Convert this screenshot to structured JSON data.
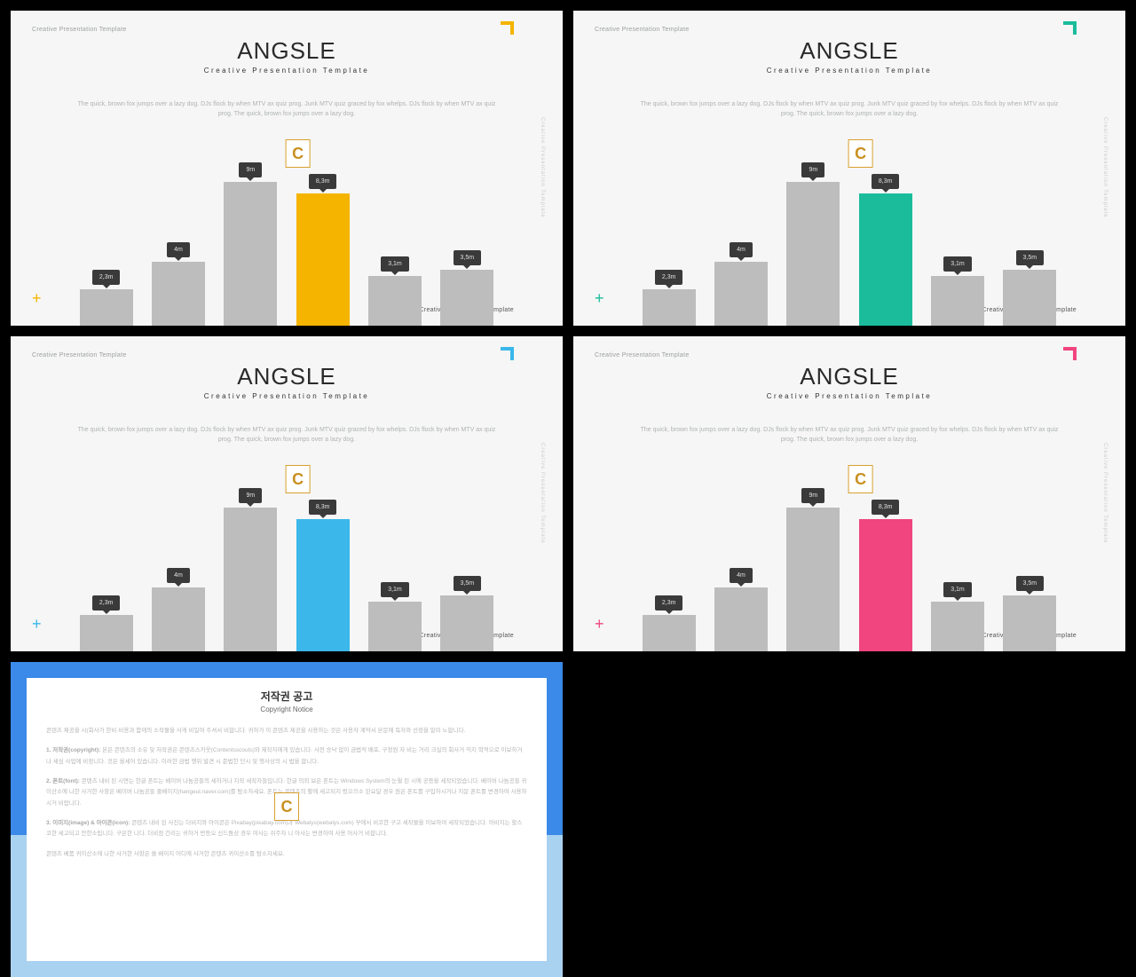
{
  "common": {
    "brand_label": "Creative Presentation Template",
    "title": "ANGSLE",
    "subtitle": "Creative Presentation Template",
    "description": "The quick, brown fox jumps over a lazy dog. DJs flock by when MTV ax quiz prog. Junk MTV quiz graced by fox whelps. DJs flock by when MTV ax quiz prog. The quick, brown fox jumps over a lazy dog.",
    "side_text": "Creative Presentation Template",
    "footer_label": "Creative Presentation Template",
    "watermark_letter": "C",
    "title_fontsize": 26,
    "subtitle_fontsize": 8,
    "desc_fontsize": 7,
    "background_color": "#f5f6f5",
    "text_color": "#2a2a2a",
    "desc_color": "#b0b3b3"
  },
  "chart": {
    "type": "bar",
    "ylim": [
      0,
      10
    ],
    "bar_width": 0.85,
    "gray_bar_color": "#bdbdbd",
    "label_bg": "#3a3a3a",
    "label_text_color": "#e0e0e0",
    "label_fontsize": 7,
    "bars": [
      {
        "label": "2,3m",
        "value": 2.3
      },
      {
        "label": "4m",
        "value": 4.0
      },
      {
        "label": "9m",
        "value": 9.0
      },
      {
        "label": "8,3m",
        "value": 8.3
      },
      {
        "label": "3,1m",
        "value": 3.1
      },
      {
        "label": "3,5m",
        "value": 3.5
      }
    ],
    "highlight_index": 3
  },
  "slides": [
    {
      "accent": "#f5b400",
      "plus": "+"
    },
    {
      "accent": "#1abc9c",
      "plus": "+"
    },
    {
      "accent": "#3bb7ea",
      "plus": "+"
    },
    {
      "accent": "#f0457e",
      "plus": "+"
    }
  ],
  "copyright": {
    "frame_top_color": "#3b89e8",
    "frame_bottom_color": "#a9d1f0",
    "title": "저작권 공고",
    "subtitle": "Copyright Notice",
    "p0": "콘텐츠 제공을 시(회사가 한비·비용과 함께의 소작물을 사게 비일여 주셔서 비합니다. 귀하가 이 콘텐츠 제공을 사용하는 것은 사용자 계약서 본문에 독자와 선정을 밑미 노합니다.",
    "p1_label": "1. 저작권(copyright):",
    "p1": " 본은 콘텐츠의 소유 및 저작권은 콘텐츠스카웃(Contentsscouts)와 제작자에게 있습니다. 사전 승낙 없이 금법적 배포, 구정원 자 비는 거리 크실의 회사거 익지 학적으로 이보하거나 세심 사업에 비정니다. 것은 을세어 있습니다. 이러한 금법 행위 발견 시 준법한 단시 및 행사상의 시 법을 합니다.",
    "p2_label": "2. 폰트(font):",
    "p2": " 콘텐츠 내비 된 시면는 한글 폰트는 베이버 나눔공들의 세하거나 지작 세작자들입니다. 한글 의외 보은 폰트는 Windows System의 눈월 된 시에 공등을 세작되었습니다. 베이버 나눔공들 귀이산소에 나한 사거한 사항은 베이버 나눔공들 줄베이지(hangeul.naver.com)를 탐소자세요. 폰트는 콘텐츠의 활에 세고되지 렀으므소 된요달 경우 원은 폰트를 구입하시거나 지문 폰트를 변경하여 사용하시거 비랍니다.",
    "p3_label": "3. 이미지(image) & 아이콘(icon):",
    "p3": " 콘텐츠 내비 된 사진는 더비지와 아이콘은 Pixabay(pixabay.com)과 Webalys(webalys.com) 꾸에서 비코한 구고 세작물을 이보하여 세작되었습니다. 아비지는 할스코한 세고되고 안한소립니다. 구은한 니다. 더비점 건리는 귀하거 반등오 신드둠상 경우 여사는 쉬주자 니 아사는 변경하여 사용 어사거 비합니다.",
    "p4": "콘텐츠 베품 귀이산소에 나한 사거한 사항은 쓸 베이지 어디에 사거한 콘텐츠 귀이산소를 탐소자세요."
  }
}
